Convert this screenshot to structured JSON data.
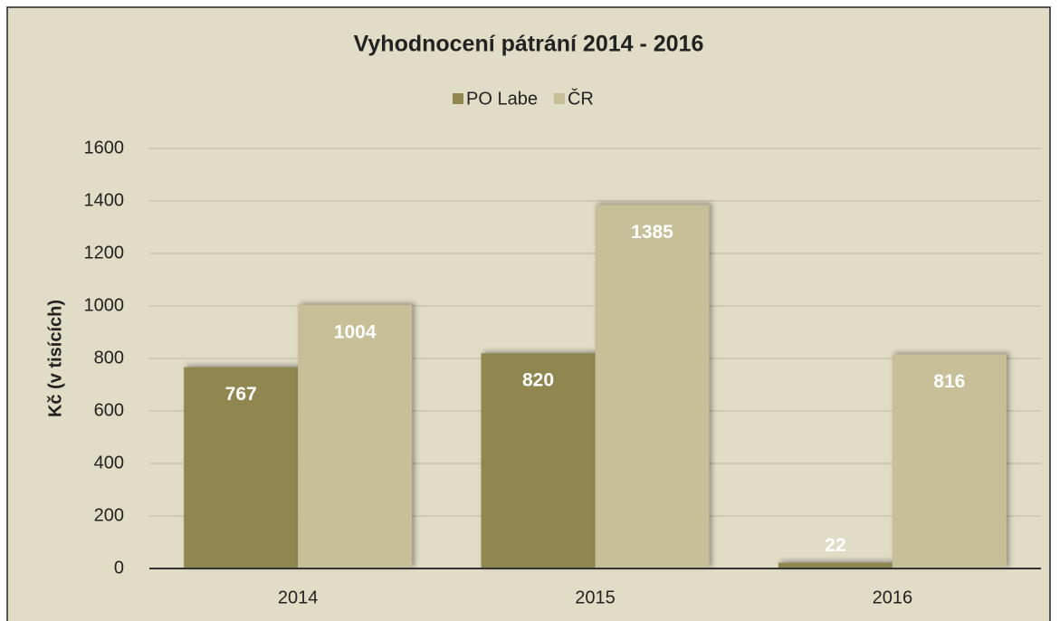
{
  "chart_data": {
    "type": "bar",
    "title": "Vyhodnocení pátrání 2014 - 2016",
    "ylabel": "Kč (v tisících)",
    "categories": [
      "2014",
      "2015",
      "2016"
    ],
    "series": [
      {
        "name": "PO Labe",
        "color": "#8f8650",
        "values": [
          767,
          820,
          22
        ]
      },
      {
        "name": "ČR",
        "color": "#c6bf98",
        "values": [
          1004,
          1385,
          816
        ]
      }
    ],
    "ylim": [
      0,
      1600
    ],
    "yticks": [
      0,
      200,
      400,
      600,
      800,
      1000,
      1200,
      1400,
      1600
    ],
    "grid": true,
    "legend": "top"
  }
}
